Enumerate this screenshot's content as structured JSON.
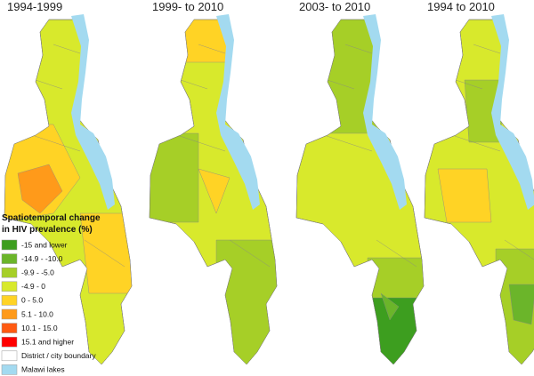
{
  "panels": [
    {
      "title": "1994-1999"
    },
    {
      "title": "1999- to 2010"
    },
    {
      "title": "2003- to 2010"
    },
    {
      "title": "1994 to 2010"
    }
  ],
  "legend": {
    "title_lines": [
      "Spatiotemporal change",
      "in HIV prevalence (%)"
    ],
    "items": [
      {
        "label": "-15 and lower",
        "color": "#3d9e1f"
      },
      {
        "label": "-14.9 - -10.0",
        "color": "#6bb52a"
      },
      {
        "label": "-9.9 - -5.0",
        "color": "#a6cf27"
      },
      {
        "label": "-4.9 - 0",
        "color": "#d8e92c"
      },
      {
        "label": "0 - 5.0",
        "color": "#ffd325"
      },
      {
        "label": "5.1 - 10.0",
        "color": "#ff9a1a"
      },
      {
        "label": "10.1 - 15.0",
        "color": "#ff5a12"
      },
      {
        "label": "15.1 and higher",
        "color": "#ff0000"
      },
      {
        "label": "District / city boundary",
        "color": "#ffffff"
      },
      {
        "label": "Malawi lakes",
        "color": "#a3daf0"
      }
    ]
  }
}
